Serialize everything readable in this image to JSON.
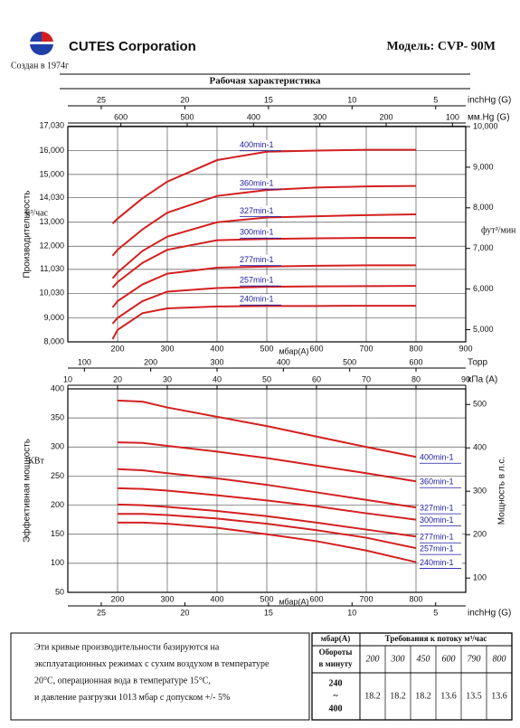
{
  "header": {
    "company": "CUTES Corporation",
    "founded": "Создан в 1974г",
    "model": "Модель: CVP- 90M",
    "title": "Рабочая характеристика"
  },
  "chart_data": [
    {
      "type": "line",
      "xlabel": "мбар(A)",
      "ylabel": "Производительность",
      "yunit": "м³/час",
      "y2label": "фут³/мин",
      "x": [
        190,
        200,
        250,
        300,
        400,
        500,
        600,
        700,
        800
      ],
      "xlim": [
        100,
        900
      ],
      "xticks": [
        200,
        300,
        400,
        500,
        600,
        700,
        800,
        900
      ],
      "ylim": [
        8000,
        17000
      ],
      "yticks": [
        {
          "value": 8000,
          "label": "8,000"
        },
        {
          "value": 9000,
          "label": "9,000"
        },
        {
          "value": 10030,
          "label": "10,030"
        },
        {
          "value": 11030,
          "label": "11,030"
        },
        {
          "value": 12000,
          "label": "12,000"
        },
        {
          "value": 13000,
          "label": "13,000"
        },
        {
          "value": 14030,
          "label": "14,030"
        },
        {
          "value": 15000,
          "label": "15,000"
        },
        {
          "value": 16000,
          "label": "16,000"
        },
        {
          "value": 17030,
          "label": "17,030"
        }
      ],
      "y2lim": [
        4700,
        10000
      ],
      "y2ticks": [
        {
          "value": 5000,
          "label": "5,000"
        },
        {
          "value": 6000,
          "label": "6,000"
        },
        {
          "value": 7000,
          "label": "7,000"
        },
        {
          "value": 8000,
          "label": "8,000"
        },
        {
          "value": 9000,
          "label": "9,000"
        },
        {
          "value": 10000,
          "label": "10,000"
        }
      ],
      "top_axes": [
        {
          "label": "inchHg (G)",
          "xlim": [
            27,
            3.2
          ],
          "xticks": [
            25,
            20,
            15,
            10,
            5
          ]
        },
        {
          "label": "мм.Hg (G)",
          "xlim": [
            680,
            80
          ],
          "xticks": [
            600,
            500,
            400,
            300,
            200,
            100
          ]
        }
      ],
      "grid": true,
      "series": [
        {
          "name": "400min-1",
          "color": "#d42020",
          "values": [
            12950,
            13150,
            14000,
            14700,
            15600,
            15950,
            16000,
            16030,
            16030
          ]
        },
        {
          "name": "360min-1",
          "color": "#d42020",
          "values": [
            11600,
            11850,
            12700,
            13400,
            14100,
            14350,
            14450,
            14500,
            14520
          ]
        },
        {
          "name": "327min-1",
          "color": "#d42020",
          "values": [
            10650,
            10900,
            11800,
            12400,
            13000,
            13200,
            13250,
            13300,
            13330
          ]
        },
        {
          "name": "300min-1",
          "color": "#d42020",
          "values": [
            10270,
            10500,
            11300,
            11850,
            12250,
            12300,
            12330,
            12350,
            12350
          ]
        },
        {
          "name": "277min-1",
          "color": "#d42020",
          "values": [
            9440,
            9700,
            10400,
            10850,
            11100,
            11150,
            11180,
            11200,
            11200
          ]
        },
        {
          "name": "257min-1",
          "color": "#d42020",
          "values": [
            8760,
            9000,
            9700,
            10100,
            10250,
            10300,
            10320,
            10330,
            10340
          ]
        },
        {
          "name": "240min-1",
          "color": "#d42020",
          "values": [
            8110,
            8500,
            9200,
            9400,
            9480,
            9500,
            9500,
            9510,
            9510
          ]
        }
      ]
    },
    {
      "type": "line",
      "xlabel": "мбар(A)",
      "ylabel": "Эффективная мощность",
      "yunit": "КВт",
      "y2label": "Мощность в л.с.",
      "x": [
        200,
        250,
        300,
        400,
        500,
        600,
        700,
        800
      ],
      "xlim": [
        100,
        900
      ],
      "xticks": [
        200,
        300,
        400,
        500,
        600,
        700,
        800
      ],
      "ylim": [
        50,
        400
      ],
      "yticks": [
        50,
        100,
        150,
        200,
        250,
        300,
        350,
        400
      ],
      "y2lim": [
        67,
        536
      ],
      "y2ticks": [
        100,
        200,
        300,
        400,
        500
      ],
      "top_axes": [
        {
          "label": "Торр",
          "xlim": [
            75,
            675
          ],
          "xticks": [
            100,
            200,
            300,
            400,
            500,
            600
          ]
        },
        {
          "label": "кПа (A)",
          "xlim": [
            10,
            90
          ],
          "xticks": [
            10,
            20,
            30,
            40,
            50,
            60,
            70,
            80,
            90
          ]
        }
      ],
      "bottom_axes": [
        {
          "label": "inchHg (G)",
          "xlim": [
            27,
            3.2
          ],
          "xticks": [
            25,
            20,
            15,
            10,
            5
          ]
        }
      ],
      "grid": true,
      "series": [
        {
          "name": "400min-1",
          "color": "#d42020",
          "values": [
            380,
            378,
            368,
            352,
            336,
            318,
            300,
            283
          ]
        },
        {
          "name": "360min-1",
          "color": "#d42020",
          "values": [
            308,
            307,
            302,
            292,
            281,
            268,
            255,
            241
          ]
        },
        {
          "name": "327min-1",
          "color": "#d42020",
          "values": [
            262,
            260,
            255,
            246,
            235,
            222,
            209,
            196
          ]
        },
        {
          "name": "300min-1",
          "color": "#d42020",
          "values": [
            229,
            228,
            225,
            217,
            208,
            198,
            186,
            175
          ]
        },
        {
          "name": "277min-1",
          "color": "#d42020",
          "values": [
            201,
            200,
            197,
            190,
            181,
            170,
            158,
            146
          ]
        },
        {
          "name": "257min-1",
          "color": "#d42020",
          "values": [
            185,
            185,
            183,
            177,
            168,
            157,
            144,
            126
          ]
        },
        {
          "name": "240min-1",
          "color": "#d42020",
          "values": [
            170,
            170,
            168,
            161,
            150,
            138,
            122,
            102
          ]
        }
      ]
    }
  ],
  "note": [
    "Эти кривые производительности базируются на",
    "эксплуатационных режимах с сухим воздухом в температуре",
    "20°C, операционная вода в температуре 15°C,",
    "и давление разгрузки 1013 мбар с допуском +/- 5%"
  ],
  "table": {
    "corner": "мбар(A)",
    "group": "Требования к потоку м³/час",
    "rowhead": [
      "Обороты",
      "в минуту"
    ],
    "columns": [
      "200",
      "300",
      "450",
      "600",
      "790",
      "800"
    ],
    "rpm": [
      "240",
      "~",
      "400"
    ],
    "values": [
      "18.2",
      "18.2",
      "18.2",
      "13.6",
      "13.5",
      "13.6"
    ]
  }
}
